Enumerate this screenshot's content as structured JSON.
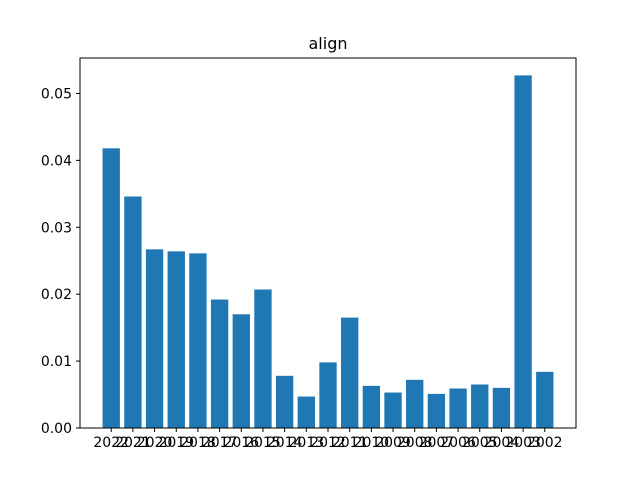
{
  "chart_data": {
    "type": "bar",
    "title": "align",
    "xlabel": "",
    "ylabel": "",
    "categories": [
      "2022",
      "2021",
      "2020",
      "2019",
      "2018",
      "2017",
      "2016",
      "2015",
      "2014",
      "2013",
      "2012",
      "2011",
      "2010",
      "2009",
      "2008",
      "2007",
      "2006",
      "2005",
      "2004",
      "2003",
      "2002"
    ],
    "values": [
      0.0418,
      0.0346,
      0.0267,
      0.0264,
      0.0261,
      0.0192,
      0.017,
      0.0207,
      0.0078,
      0.0047,
      0.0098,
      0.0165,
      0.0063,
      0.0053,
      0.0072,
      0.0051,
      0.0059,
      0.0065,
      0.006,
      0.0527,
      0.0084
    ],
    "ylim": [
      0,
      0.0553
    ],
    "yticks": [
      "0.00",
      "0.01",
      "0.02",
      "0.03",
      "0.04",
      "0.05"
    ],
    "grid": false,
    "bar_color": "#1f77b4"
  }
}
